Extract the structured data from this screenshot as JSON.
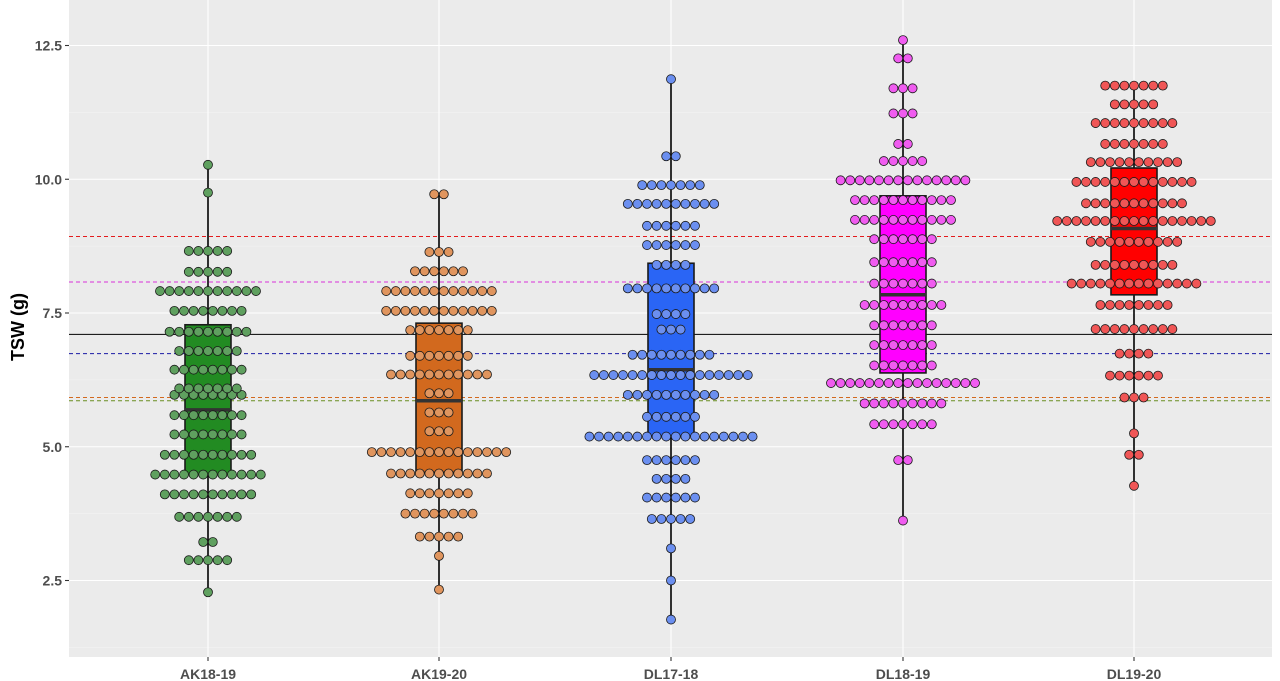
{
  "chart_data": {
    "type": "box+dotplot",
    "title": "",
    "xlabel": "",
    "ylabel": "TSW (g)",
    "ylim": [
      1.0,
      13.0
    ],
    "y_ticks": [
      2.5,
      5.0,
      7.5,
      10.0,
      12.5
    ],
    "y_tick_labels": [
      "2.5",
      "5.0",
      "7.5",
      "10.0",
      "12.5"
    ],
    "categories": [
      "AK18-19",
      "AK19-20",
      "DL17-18",
      "DL18-19",
      "DL19-20"
    ],
    "reference_lines": [
      {
        "name": "overall-mean",
        "value": 7.1,
        "style": "solid",
        "color": "#000000"
      },
      {
        "name": "DL19-20-mean",
        "value": 8.93,
        "style": "dashed",
        "color": "#e31a1c"
      },
      {
        "name": "DL18-19-mean",
        "value": 8.08,
        "style": "dashed",
        "color": "#d930d9"
      },
      {
        "name": "DL17-18-mean",
        "value": 6.74,
        "style": "dashed",
        "color": "#1a1aa6"
      },
      {
        "name": "AK19-20-mean",
        "value": 5.92,
        "style": "dashed",
        "color": "#d2691e"
      },
      {
        "name": "AK18-19-mean",
        "value": 5.86,
        "style": "dashed",
        "color": "#6b8e23"
      }
    ],
    "series": [
      {
        "name": "AK18-19",
        "box_color": "#228B22",
        "dot_color": "#5fa05f",
        "box": {
          "min": 2.28,
          "q1": 4.48,
          "median": 5.69,
          "q3": 7.28,
          "max": 10.27
        },
        "dots": [
          {
            "y": 2.28,
            "n": 1
          },
          {
            "y": 2.88,
            "n": 5
          },
          {
            "y": 3.22,
            "n": 2
          },
          {
            "y": 3.69,
            "n": 7
          },
          {
            "y": 4.11,
            "n": 10
          },
          {
            "y": 4.48,
            "n": 12
          },
          {
            "y": 4.85,
            "n": 10
          },
          {
            "y": 5.23,
            "n": 8
          },
          {
            "y": 5.59,
            "n": 8
          },
          {
            "y": 5.97,
            "n": 8
          },
          {
            "y": 6.09,
            "n": 7
          },
          {
            "y": 6.44,
            "n": 8
          },
          {
            "y": 6.79,
            "n": 7
          },
          {
            "y": 7.15,
            "n": 9
          },
          {
            "y": 7.54,
            "n": 8
          },
          {
            "y": 7.91,
            "n": 11
          },
          {
            "y": 8.27,
            "n": 5
          },
          {
            "y": 8.66,
            "n": 5
          },
          {
            "y": 9.75,
            "n": 1
          },
          {
            "y": 10.27,
            "n": 1
          }
        ]
      },
      {
        "name": "AK19-20",
        "box_color": "#D2691E",
        "dot_color": "#e0955e",
        "box": {
          "min": 2.33,
          "q1": 4.52,
          "median": 5.86,
          "q3": 7.31,
          "max": 9.72
        },
        "dots": [
          {
            "y": 2.33,
            "n": 1
          },
          {
            "y": 2.96,
            "n": 1
          },
          {
            "y": 3.32,
            "n": 5
          },
          {
            "y": 3.75,
            "n": 8
          },
          {
            "y": 4.13,
            "n": 7
          },
          {
            "y": 4.5,
            "n": 11
          },
          {
            "y": 4.9,
            "n": 15
          },
          {
            "y": 5.29,
            "n": 3
          },
          {
            "y": 5.64,
            "n": 3
          },
          {
            "y": 6.0,
            "n": 3
          },
          {
            "y": 6.35,
            "n": 11
          },
          {
            "y": 6.7,
            "n": 7
          },
          {
            "y": 7.18,
            "n": 7
          },
          {
            "y": 7.54,
            "n": 12
          },
          {
            "y": 7.91,
            "n": 12
          },
          {
            "y": 8.28,
            "n": 6
          },
          {
            "y": 8.64,
            "n": 3
          },
          {
            "y": 9.72,
            "n": 2
          }
        ]
      },
      {
        "name": "DL17-18",
        "box_color": "#2A65F5",
        "dot_color": "#6b8ff0",
        "box": {
          "min": 1.77,
          "q1": 5.2,
          "median": 6.44,
          "q3": 8.43,
          "max": 11.87
        },
        "dots": [
          {
            "y": 1.77,
            "n": 1
          },
          {
            "y": 2.5,
            "n": 1
          },
          {
            "y": 3.1,
            "n": 1
          },
          {
            "y": 3.65,
            "n": 5
          },
          {
            "y": 4.05,
            "n": 6
          },
          {
            "y": 4.4,
            "n": 4
          },
          {
            "y": 4.75,
            "n": 6
          },
          {
            "y": 5.19,
            "n": 18
          },
          {
            "y": 5.56,
            "n": 6
          },
          {
            "y": 5.97,
            "n": 10
          },
          {
            "y": 6.34,
            "n": 17
          },
          {
            "y": 6.72,
            "n": 9
          },
          {
            "y": 7.19,
            "n": 3
          },
          {
            "y": 7.48,
            "n": 4
          },
          {
            "y": 7.96,
            "n": 10
          },
          {
            "y": 8.4,
            "n": 4
          },
          {
            "y": 8.77,
            "n": 6
          },
          {
            "y": 9.13,
            "n": 6
          },
          {
            "y": 9.54,
            "n": 10
          },
          {
            "y": 9.89,
            "n": 7
          },
          {
            "y": 10.43,
            "n": 2
          },
          {
            "y": 11.87,
            "n": 1
          }
        ]
      },
      {
        "name": "DL18-19",
        "box_color": "#FF00FF",
        "dot_color": "#f05cf0",
        "box": {
          "min": 3.62,
          "q1": 6.38,
          "median": 7.84,
          "q3": 9.69,
          "max": 12.6
        },
        "dots": [
          {
            "y": 3.62,
            "n": 1
          },
          {
            "y": 4.75,
            "n": 2
          },
          {
            "y": 5.42,
            "n": 7
          },
          {
            "y": 5.81,
            "n": 9
          },
          {
            "y": 6.19,
            "n": 16
          },
          {
            "y": 6.52,
            "n": 7
          },
          {
            "y": 6.9,
            "n": 7
          },
          {
            "y": 7.27,
            "n": 7
          },
          {
            "y": 7.65,
            "n": 9
          },
          {
            "y": 8.05,
            "n": 7
          },
          {
            "y": 8.45,
            "n": 7
          },
          {
            "y": 8.88,
            "n": 7
          },
          {
            "y": 9.24,
            "n": 11
          },
          {
            "y": 9.61,
            "n": 11
          },
          {
            "y": 9.98,
            "n": 14
          },
          {
            "y": 10.34,
            "n": 5
          },
          {
            "y": 10.66,
            "n": 2
          },
          {
            "y": 11.23,
            "n": 3
          },
          {
            "y": 11.7,
            "n": 3
          },
          {
            "y": 12.26,
            "n": 2
          },
          {
            "y": 12.6,
            "n": 1
          }
        ]
      },
      {
        "name": "DL19-20",
        "box_color": "#FF0000",
        "dot_color": "#f05656",
        "box": {
          "min": 4.27,
          "q1": 7.84,
          "median": 9.08,
          "q3": 10.21,
          "max": 11.75
        },
        "dots": [
          {
            "y": 4.27,
            "n": 1
          },
          {
            "y": 4.85,
            "n": 2
          },
          {
            "y": 5.25,
            "n": 1
          },
          {
            "y": 5.92,
            "n": 3
          },
          {
            "y": 6.33,
            "n": 6
          },
          {
            "y": 6.74,
            "n": 4
          },
          {
            "y": 7.2,
            "n": 9
          },
          {
            "y": 7.65,
            "n": 8
          },
          {
            "y": 8.05,
            "n": 14
          },
          {
            "y": 8.4,
            "n": 9
          },
          {
            "y": 8.83,
            "n": 10
          },
          {
            "y": 9.22,
            "n": 17
          },
          {
            "y": 9.55,
            "n": 11
          },
          {
            "y": 9.95,
            "n": 13
          },
          {
            "y": 10.32,
            "n": 10
          },
          {
            "y": 10.66,
            "n": 7
          },
          {
            "y": 11.05,
            "n": 9
          },
          {
            "y": 11.4,
            "n": 5
          },
          {
            "y": 11.75,
            "n": 7
          }
        ]
      }
    ]
  }
}
